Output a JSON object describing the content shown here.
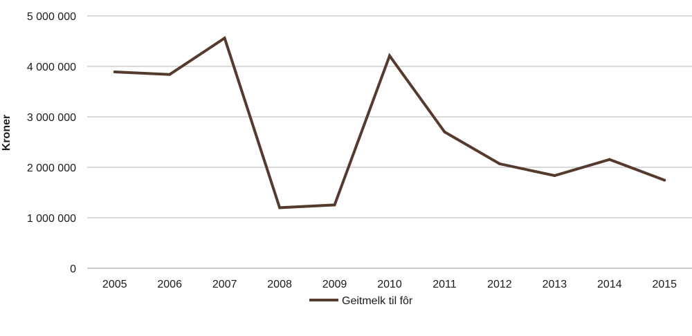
{
  "chart_data": {
    "type": "line",
    "title": "",
    "xlabel": "",
    "ylabel": "Kroner",
    "categories": [
      "2005",
      "2006",
      "2007",
      "2008",
      "2009",
      "2010",
      "2011",
      "2012",
      "2013",
      "2014",
      "2015"
    ],
    "series": [
      {
        "name": "Geitmelk til fôr",
        "color": "#553a2e",
        "values": [
          3890000,
          3840000,
          4560000,
          1200000,
          1255000,
          4210000,
          2700000,
          2070000,
          1835000,
          2155000,
          1745000
        ]
      }
    ],
    "ylim": [
      0,
      5000000
    ],
    "yticks": [
      0,
      1000000,
      2000000,
      3000000,
      4000000,
      5000000
    ],
    "ytick_labels": [
      "0",
      "1 000 000",
      "2 000 000",
      "3 000 000",
      "4 000 000",
      "5 000 000"
    ],
    "grid": true,
    "legend_position": "bottom"
  }
}
